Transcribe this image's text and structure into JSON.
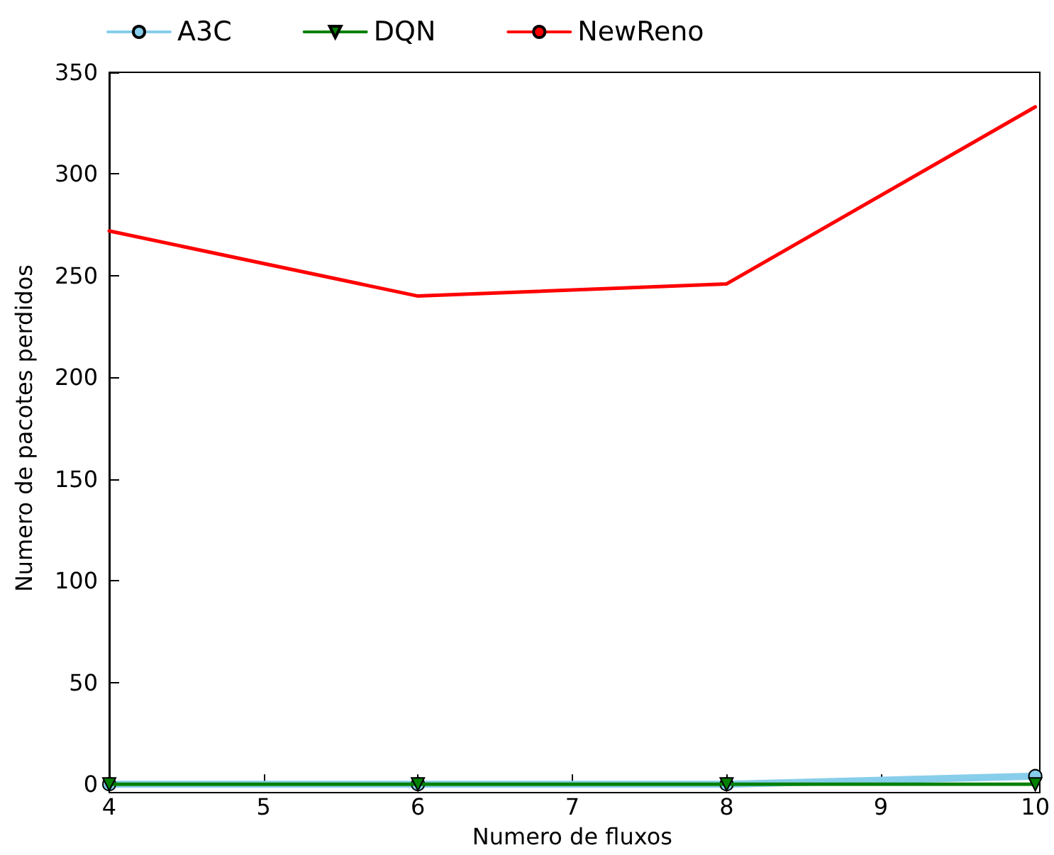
{
  "chart_data": {
    "type": "line",
    "xlabel": "Numero de fluxos",
    "ylabel": "Numero de pacotes perdidos",
    "x": [
      4,
      6,
      8,
      10
    ],
    "xlim": [
      4,
      10
    ],
    "xticks": [
      4,
      5,
      6,
      7,
      8,
      9,
      10
    ],
    "ylim": [
      0,
      350
    ],
    "yticks": [
      0,
      50,
      100,
      150,
      200,
      250,
      300,
      350
    ],
    "grid": false,
    "legend": "top left",
    "series": [
      {
        "name": "A3C",
        "color": "#87ceeb",
        "marker": "circle",
        "values": [
          0,
          0,
          0,
          4
        ]
      },
      {
        "name": "DQN",
        "color": "#008000",
        "marker": "triangle",
        "values": [
          0,
          0,
          0,
          0
        ]
      },
      {
        "name": "NewReno",
        "color": "#ff0000",
        "marker": "none",
        "values": [
          272,
          240,
          246,
          333
        ]
      }
    ]
  }
}
